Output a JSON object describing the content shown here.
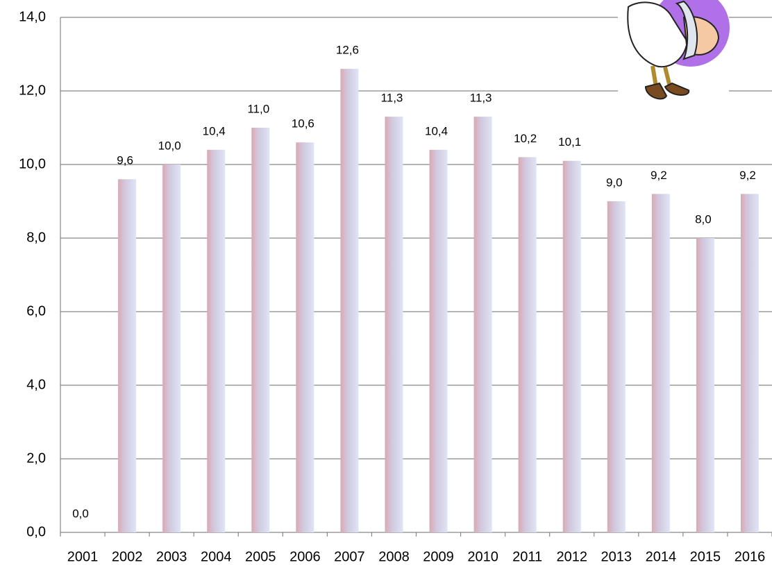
{
  "chart_data": {
    "type": "bar",
    "categories": [
      "2001",
      "2002",
      "2003",
      "2004",
      "2005",
      "2006",
      "2007",
      "2008",
      "2009",
      "2010",
      "2011",
      "2012",
      "2013",
      "2014",
      "2015",
      "2016"
    ],
    "values": [
      0.0,
      9.6,
      10.0,
      10.4,
      11.0,
      10.6,
      12.6,
      11.3,
      10.4,
      11.3,
      10.2,
      10.1,
      9.0,
      9.2,
      8.0,
      9.2
    ],
    "value_labels": [
      "0,0",
      "9,6",
      "10,0",
      "10,4",
      "11,0",
      "10,6",
      "12,6",
      "11,3",
      "10,4",
      "11,3",
      "10,2",
      "10,1",
      "9,0",
      "9,2",
      "8,0",
      "9,2"
    ],
    "ylim": [
      0,
      14
    ],
    "yticks": [
      {
        "value": 0,
        "label": "0,0"
      },
      {
        "value": 2,
        "label": "2,0"
      },
      {
        "value": 4,
        "label": "4,0"
      },
      {
        "value": 6,
        "label": "6,0"
      },
      {
        "value": 8,
        "label": "8,0"
      },
      {
        "value": 10,
        "label": "10,0"
      },
      {
        "value": 12,
        "label": "12,0"
      },
      {
        "value": 14,
        "label": "14,0"
      }
    ],
    "grid": true
  }
}
